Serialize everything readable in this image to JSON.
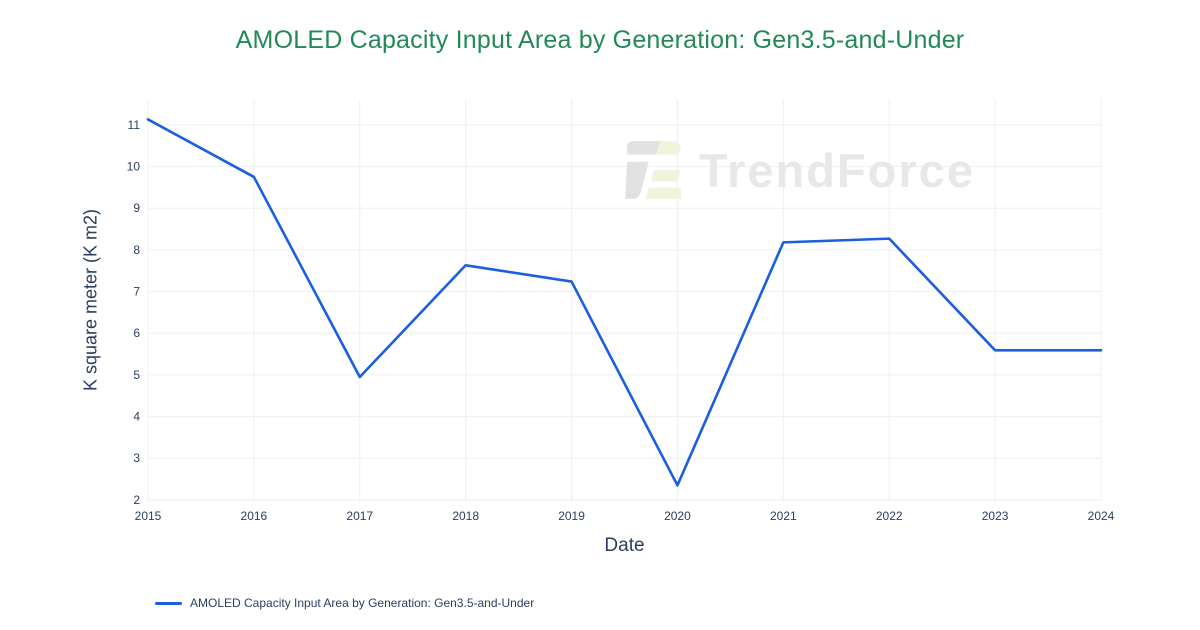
{
  "title": "AMOLED Capacity Input Area by Generation: Gen3.5-and-Under",
  "watermark": {
    "text": "TrendForce"
  },
  "legend": {
    "label": "AMOLED Capacity Input Area by Generation: Gen3.5-and-Under"
  },
  "colors": {
    "title": "#218a57",
    "line": "#1c5ee0",
    "axis_text": "#2a3f5f",
    "gridline": "#eef0f4",
    "watermark_text": "#e8e8e8",
    "watermark_logo_gray": "#e2e2e2",
    "watermark_logo_green": "#f0f4dc"
  },
  "chart_data": {
    "type": "line",
    "title": "AMOLED Capacity Input Area by Generation: Gen3.5-and-Under",
    "xlabel": "Date",
    "ylabel": "K square meter (K m2)",
    "x": [
      2015,
      2016,
      2017,
      2018,
      2019,
      2020,
      2021,
      2022,
      2023,
      2024
    ],
    "series": [
      {
        "name": "AMOLED Capacity Input Area by Generation: Gen3.5-and-Under",
        "values": [
          11.13,
          9.75,
          4.95,
          7.63,
          7.24,
          2.35,
          8.18,
          8.27,
          5.59,
          5.59
        ]
      }
    ],
    "xticks": [
      "2015",
      "2016",
      "2017",
      "2018",
      "2019",
      "2020",
      "2021",
      "2022",
      "2023",
      "2024"
    ],
    "yticks": [
      2,
      3,
      4,
      5,
      6,
      7,
      8,
      9,
      10,
      11
    ],
    "xlim": [
      2015,
      2024
    ],
    "ylim": [
      1.95,
      11.62
    ],
    "grid": true,
    "legend_position": "bottom-left"
  }
}
